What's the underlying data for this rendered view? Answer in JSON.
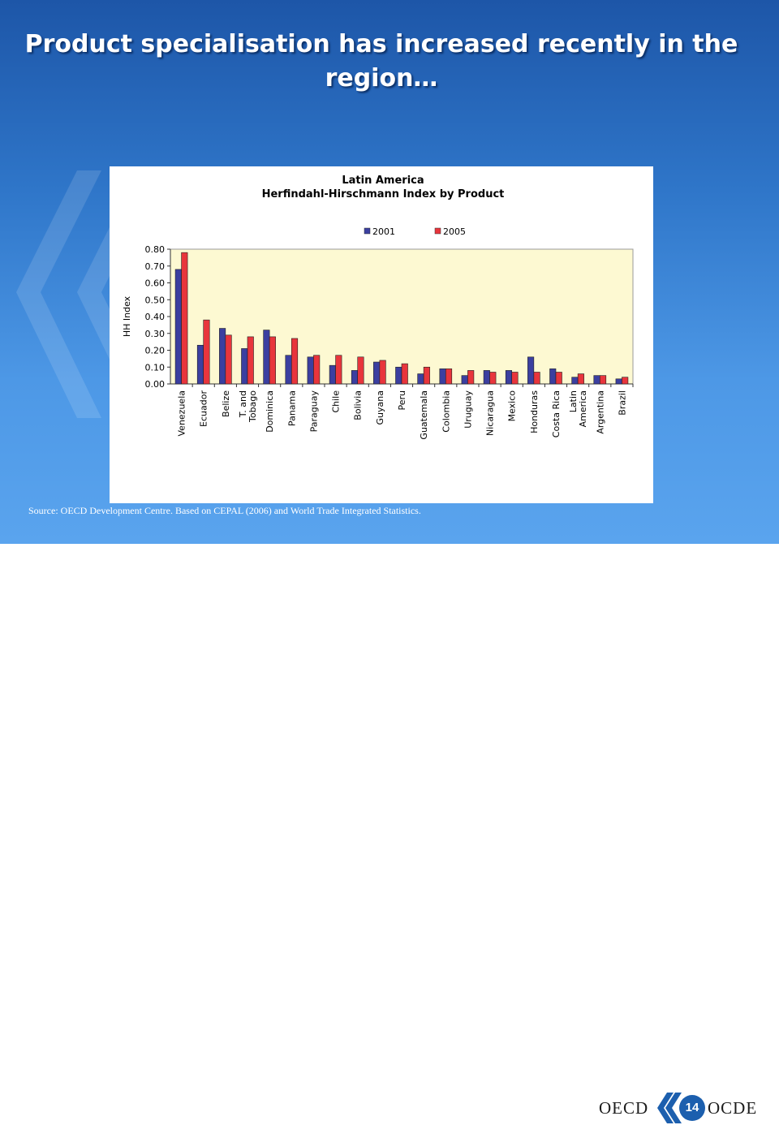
{
  "slide": {
    "title": "Product specialisation has increased recently in the region…",
    "source": "Source: OECD Development Centre. Based on CEPAL (2006) and World Trade Integrated Statistics."
  },
  "footer": {
    "left_logo_text": "OECD",
    "right_logo_text": "OCDE",
    "page_number": "14"
  },
  "colors": {
    "series_2001": "#3b3fa0",
    "series_2005": "#e8353c",
    "plot_background": "#fdf9d2"
  },
  "chart_data": {
    "type": "bar",
    "title": [
      "Latin America",
      "Herfindahl-Hirschmann Index by Product"
    ],
    "ylabel": "HH Index",
    "xlabel": "",
    "ylim": [
      0,
      0.8
    ],
    "yticks": [
      "0.00",
      "0.10",
      "0.20",
      "0.30",
      "0.40",
      "0.50",
      "0.60",
      "0.70",
      "0.80"
    ],
    "legend": "top",
    "grid": false,
    "categories": [
      "Venezuela",
      "Ecuador",
      "Belize",
      "T. and Tobago",
      "Dominica",
      "Panama",
      "Paraguay",
      "Chile",
      "Bolivia",
      "Guyana",
      "Peru",
      "Guatemala",
      "Colombia",
      "Uruguay",
      "Nicaragua",
      "Mexico",
      "Honduras",
      "Costa Rica",
      "Latin America",
      "Argentina",
      "Brazil"
    ],
    "category_lines": [
      [
        "Venezuela"
      ],
      [
        "Ecuador"
      ],
      [
        "Belize"
      ],
      [
        "T. and",
        "Tobago"
      ],
      [
        "Dominica"
      ],
      [
        "Panama"
      ],
      [
        "Paraguay"
      ],
      [
        "Chile"
      ],
      [
        "Bolivia"
      ],
      [
        "Guyana"
      ],
      [
        "Peru"
      ],
      [
        "Guatemala"
      ],
      [
        "Colombia"
      ],
      [
        "Uruguay"
      ],
      [
        "Nicaragua"
      ],
      [
        "Mexico"
      ],
      [
        "Honduras"
      ],
      [
        "Costa Rica"
      ],
      [
        "Latin",
        "America"
      ],
      [
        "Argentina"
      ],
      [
        "Brazil"
      ]
    ],
    "series": [
      {
        "name": "2001",
        "values": [
          0.68,
          0.23,
          0.33,
          0.21,
          0.32,
          0.17,
          0.16,
          0.11,
          0.08,
          0.13,
          0.1,
          0.06,
          0.09,
          0.05,
          0.08,
          0.08,
          0.16,
          0.09,
          0.04,
          0.05,
          0.03
        ]
      },
      {
        "name": "2005",
        "values": [
          0.78,
          0.38,
          0.29,
          0.28,
          0.28,
          0.27,
          0.17,
          0.17,
          0.16,
          0.14,
          0.12,
          0.1,
          0.09,
          0.08,
          0.07,
          0.07,
          0.07,
          0.07,
          0.06,
          0.05,
          0.04
        ]
      }
    ]
  }
}
